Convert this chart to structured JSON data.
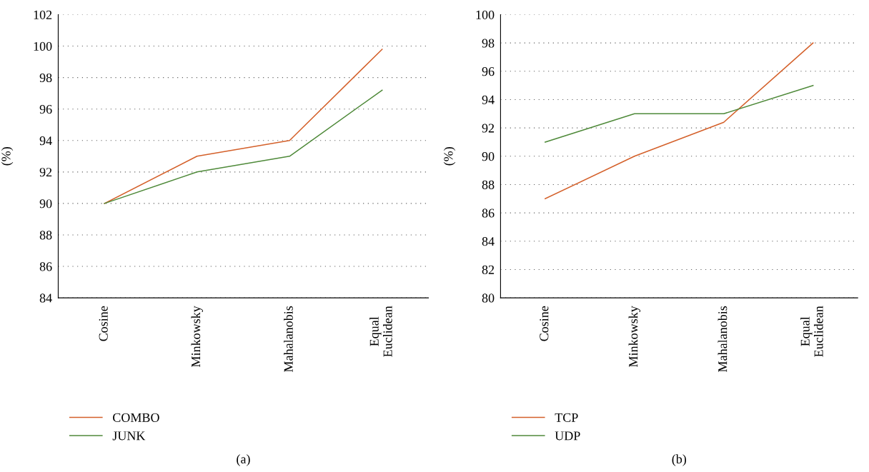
{
  "chart_data": [
    {
      "type": "line",
      "categories": [
        "Cosine",
        "Minkowsky",
        "Mahalanobis",
        "Equal\nEuclidean"
      ],
      "ylabel": "(%)",
      "ylim": [
        84,
        102
      ],
      "yticks": [
        84,
        86,
        88,
        90,
        92,
        94,
        96,
        98,
        100,
        102
      ],
      "grid": "y",
      "legend": "bottom",
      "marker": "none",
      "line_style": "solid",
      "annotations": [
        "(a)"
      ],
      "series": [
        {
          "name": "COMBO",
          "color": "#d4602a",
          "values": [
            90,
            93,
            94,
            99.8
          ]
        },
        {
          "name": "JUNK",
          "color": "#4f8a3a",
          "values": [
            90,
            92,
            93,
            97.2
          ]
        }
      ]
    },
    {
      "type": "line",
      "categories": [
        "Cosine",
        "Minkowsky",
        "Mahalanobis",
        "Equal\nEuclidean"
      ],
      "ylabel": "(%)",
      "ylim": [
        80,
        100
      ],
      "yticks": [
        80,
        82,
        84,
        86,
        88,
        90,
        92,
        94,
        96,
        98,
        100
      ],
      "grid": "y",
      "legend": "bottom",
      "marker": "none",
      "line_style": "solid",
      "annotations": [
        "(b)"
      ],
      "series": [
        {
          "name": "TCP",
          "color": "#d4602a",
          "values": [
            87,
            90,
            92.4,
            98
          ]
        },
        {
          "name": "UDP",
          "color": "#4f8a3a",
          "values": [
            91,
            93,
            93,
            95
          ]
        }
      ]
    }
  ]
}
